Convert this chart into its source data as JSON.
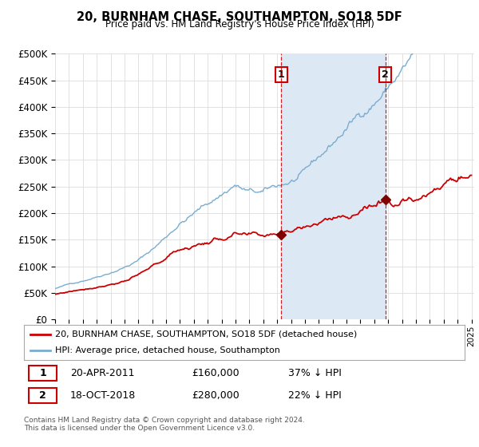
{
  "title": "20, BURNHAM CHASE, SOUTHAMPTON, SO18 5DF",
  "subtitle": "Price paid vs. HM Land Registry's House Price Index (HPI)",
  "legend_line1": "20, BURNHAM CHASE, SOUTHAMPTON, SO18 5DF (detached house)",
  "legend_line2": "HPI: Average price, detached house, Southampton",
  "footer": "Contains HM Land Registry data © Crown copyright and database right 2024.\nThis data is licensed under the Open Government Licence v3.0.",
  "sale1_date": "20-APR-2011",
  "sale1_price": "£160,000",
  "sale1_hpi": "37% ↓ HPI",
  "sale2_date": "18-OCT-2018",
  "sale2_price": "£280,000",
  "sale2_hpi": "22% ↓ HPI",
  "sale1_x": 2011.3,
  "sale2_x": 2018.8,
  "sale1_y": 160000,
  "sale2_y": 280000,
  "red_color": "#cc0000",
  "blue_color": "#7aadcf",
  "marker_color": "#800000",
  "vline_color": "#cc0000",
  "box_color": "#cc0000",
  "shade_color": "#dde8f5",
  "ylim": [
    0,
    500000
  ],
  "xlim_start": 1995.0,
  "xlim_end": 2025.2,
  "background_color": "#ffffff",
  "plot_bg_color": "#ffffff",
  "grid_color": "#dddddd"
}
